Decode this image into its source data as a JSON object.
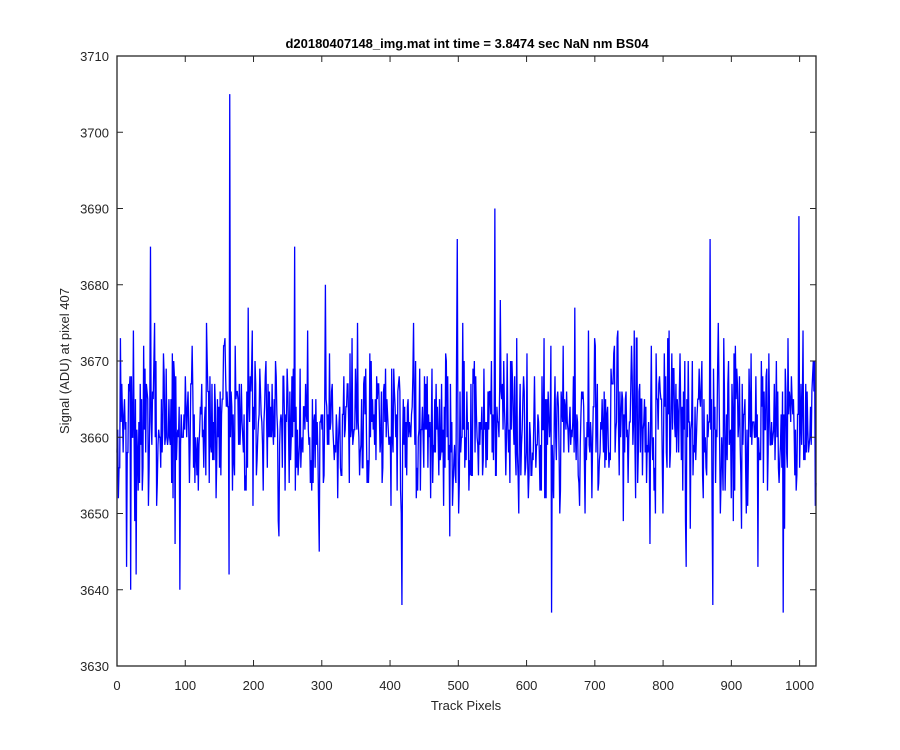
{
  "chart_data": {
    "type": "line",
    "title": "d20180407148_img.mat int time = 3.8474 sec  NaN nm BS04",
    "xlabel": "Track Pixels",
    "ylabel": "Signal (ADU) at pixel 407",
    "xlim": [
      0,
      1024
    ],
    "ylim": [
      3630,
      3710
    ],
    "xticks": [
      0,
      100,
      200,
      300,
      400,
      500,
      600,
      700,
      800,
      900,
      1000
    ],
    "yticks": [
      3630,
      3640,
      3650,
      3660,
      3670,
      3680,
      3690,
      3700,
      3710
    ],
    "grid": false,
    "legend": "none",
    "series": [
      {
        "color": "#0000ff",
        "n_points": 1024,
        "baseline": 3662,
        "spread": 5.5,
        "range_min": 3637,
        "range_max": 3705,
        "notable_points": [
          {
            "x": 14,
            "y": 3643
          },
          {
            "x": 20,
            "y": 3640
          },
          {
            "x": 49,
            "y": 3685
          },
          {
            "x": 92,
            "y": 3640
          },
          {
            "x": 164,
            "y": 3642
          },
          {
            "x": 165,
            "y": 3705
          },
          {
            "x": 260,
            "y": 3685
          },
          {
            "x": 417,
            "y": 3638
          },
          {
            "x": 498,
            "y": 3686
          },
          {
            "x": 553,
            "y": 3690
          },
          {
            "x": 636,
            "y": 3637
          },
          {
            "x": 868,
            "y": 3686
          },
          {
            "x": 872,
            "y": 3638
          },
          {
            "x": 975,
            "y": 3637
          },
          {
            "x": 998,
            "y": 3689
          }
        ]
      }
    ]
  }
}
